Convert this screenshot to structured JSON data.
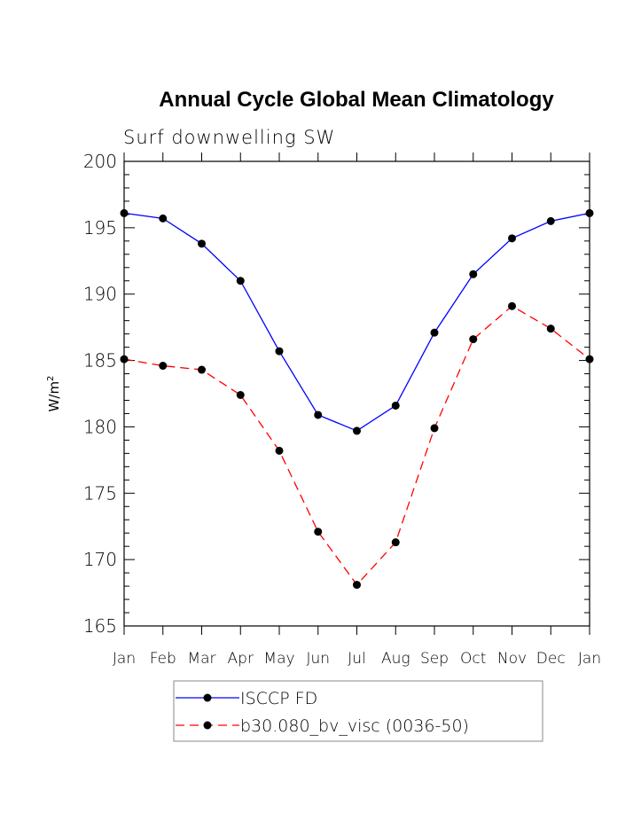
{
  "chart_data": {
    "type": "line",
    "title": "Annual Cycle Global Mean Climatology",
    "subtitle": "Surf downwelling SW",
    "ylabel": "W/m",
    "ylabel_superscript": "2",
    "xlabel": "",
    "ylim": [
      165,
      200
    ],
    "yticks": [
      165,
      170,
      175,
      180,
      185,
      190,
      195,
      200
    ],
    "categories": [
      "Jan",
      "Feb",
      "Mar",
      "Apr",
      "May",
      "Jun",
      "Jul",
      "Aug",
      "Sep",
      "Oct",
      "Nov",
      "Dec",
      "Jan"
    ],
    "grid": false,
    "legend_position": "bottom",
    "series": [
      {
        "name": "ISCCP FD",
        "color": "#0000ff",
        "dashed": false,
        "values": [
          196.1,
          195.7,
          193.8,
          191.0,
          185.7,
          180.9,
          179.7,
          181.6,
          187.1,
          191.5,
          194.2,
          195.5,
          196.1
        ]
      },
      {
        "name": "b30.080_bv_visc (0036-50)",
        "color": "#ff0000",
        "dashed": true,
        "values": [
          185.1,
          184.6,
          184.3,
          182.4,
          178.2,
          172.1,
          168.1,
          171.3,
          179.9,
          186.6,
          189.1,
          187.4,
          185.1
        ]
      }
    ]
  }
}
